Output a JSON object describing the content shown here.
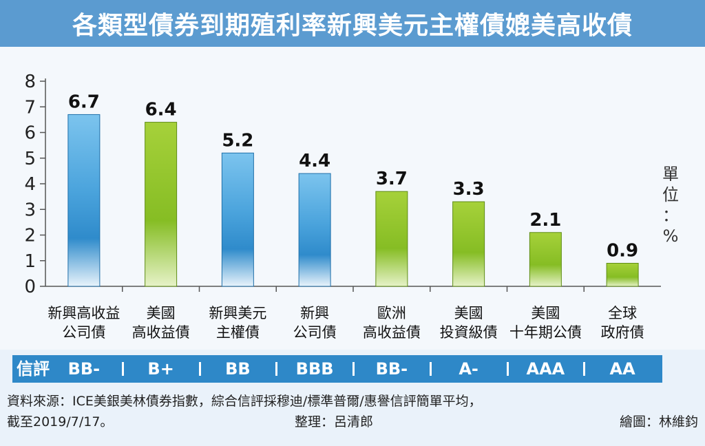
{
  "title": "各類型債券到期殖利率新興美元主權債媲美高收債",
  "unit_label": "單位：%",
  "chart_data": {
    "type": "bar",
    "categories": [
      [
        "新興高收益",
        "公司債"
      ],
      [
        "美國",
        "高收益債"
      ],
      [
        "新興美元",
        "主權債"
      ],
      [
        "新興",
        "公司債"
      ],
      [
        "歐洲",
        "高收益債"
      ],
      [
        "美國",
        "投資級債"
      ],
      [
        "美國",
        "十年期公債"
      ],
      [
        "全球",
        "政府債"
      ]
    ],
    "values": [
      6.7,
      6.4,
      5.2,
      4.4,
      3.7,
      3.3,
      2.1,
      0.9
    ],
    "value_labels": [
      "6.7",
      "6.4",
      "5.2",
      "4.4",
      "3.7",
      "3.3",
      "2.1",
      "0.9"
    ],
    "bar_colors": [
      "blue",
      "green",
      "blue",
      "blue",
      "green",
      "green",
      "green",
      "green"
    ],
    "ylim": [
      0,
      8
    ],
    "yticks": [
      "0",
      "1",
      "2",
      "3",
      "4",
      "5",
      "6",
      "7",
      "8"
    ],
    "grid": false
  },
  "ratings": {
    "label": "信評",
    "values": [
      "BB-",
      "B+",
      "BB",
      "BBB",
      "BB-",
      "A-",
      "AAA",
      "AA"
    ]
  },
  "colors": {
    "title_bg": "#5b9bd0",
    "rating_bg": "#2e88c8",
    "blue_top": "#6ab8e8",
    "blue_mid": "#2b88c8",
    "green_top": "#b6d93a",
    "green_mid": "#7fb71f"
  },
  "source": {
    "line1": "資料來源：ICE美銀美林債券指數，綜合信評採穆迪/標準普爾/惠譽信評簡單平均，",
    "line2": "截至2019/7/17。",
    "editor": "整理：呂清郎",
    "illustrator": "繪圖：林維鈞"
  }
}
